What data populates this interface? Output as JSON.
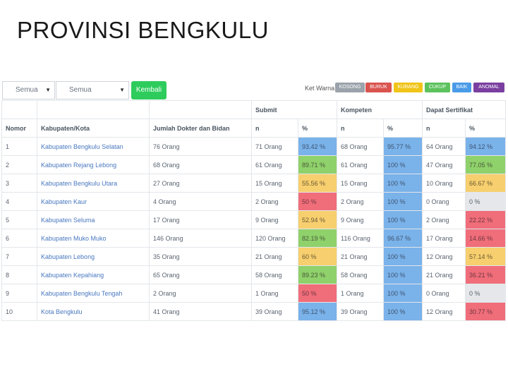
{
  "page_title": "PROVINSI BENGKULU",
  "filters": {
    "select1": "Semua",
    "select2": "Semua",
    "back_label": "Kembali"
  },
  "legend": {
    "title": "Ket Warna :",
    "items": [
      {
        "label": "KOSONG",
        "color": "#9aa3ab"
      },
      {
        "label": "BURUK",
        "color": "#d9534f"
      },
      {
        "label": "KURANG",
        "color": "#f0c419"
      },
      {
        "label": "CUKUP",
        "color": "#5cc25c"
      },
      {
        "label": "BAIK",
        "color": "#4a9be8"
      },
      {
        "label": "ANOMAL",
        "color": "#7a3fa0"
      }
    ]
  },
  "table": {
    "group_headers": [
      "Submit",
      "Kompeten",
      "Dapat Sertifikat"
    ],
    "headers": [
      "Nomor",
      "Kabupaten/Kota",
      "Jumlah Dokter dan Bidan",
      "n",
      "%",
      "n",
      "%",
      "n",
      "%"
    ],
    "rows": [
      {
        "no": "1",
        "kab": "Kabupaten Bengkulu Selatan",
        "jumlah": "76 Orang",
        "s_n": "71 Orang",
        "s_p": "93.42 %",
        "s_c": "blue",
        "k_n": "68 Orang",
        "k_p": "95.77 %",
        "k_c": "blue",
        "d_n": "64 Orang",
        "d_p": "94.12 %",
        "d_c": "blue"
      },
      {
        "no": "2",
        "kab": "Kabupaten Rejang Lebong",
        "jumlah": "68 Orang",
        "s_n": "61 Orang",
        "s_p": "89.71 %",
        "s_c": "green",
        "k_n": "61 Orang",
        "k_p": "100 %",
        "k_c": "blue",
        "d_n": "47 Orang",
        "d_p": "77.05 %",
        "d_c": "green"
      },
      {
        "no": "3",
        "kab": "Kabupaten Bengkulu Utara",
        "jumlah": "27 Orang",
        "s_n": "15 Orang",
        "s_p": "55.56 %",
        "s_c": "yellow",
        "k_n": "15 Orang",
        "k_p": "100 %",
        "k_c": "blue",
        "d_n": "10 Orang",
        "d_p": "66.67 %",
        "d_c": "yellow"
      },
      {
        "no": "4",
        "kab": "Kabupaten Kaur",
        "jumlah": "4 Orang",
        "s_n": "2 Orang",
        "s_p": "50 %",
        "s_c": "red",
        "k_n": "2 Orang",
        "k_p": "100 %",
        "k_c": "blue",
        "d_n": "0 Orang",
        "d_p": "0 %",
        "d_c": "gray"
      },
      {
        "no": "5",
        "kab": "Kabupaten Seluma",
        "jumlah": "17 Orang",
        "s_n": "9 Orang",
        "s_p": "52.94 %",
        "s_c": "yellow",
        "k_n": "9 Orang",
        "k_p": "100 %",
        "k_c": "blue",
        "d_n": "2 Orang",
        "d_p": "22.22 %",
        "d_c": "red"
      },
      {
        "no": "6",
        "kab": "Kabupaten Muko Muko",
        "jumlah": "146 Orang",
        "s_n": "120 Orang",
        "s_p": "82.19 %",
        "s_c": "green",
        "k_n": "116 Orang",
        "k_p": "96.67 %",
        "k_c": "blue",
        "d_n": "17 Orang",
        "d_p": "14.66 %",
        "d_c": "red"
      },
      {
        "no": "7",
        "kab": "Kabupaten Lebong",
        "jumlah": "35 Orang",
        "s_n": "21 Orang",
        "s_p": "60 %",
        "s_c": "yellow",
        "k_n": "21 Orang",
        "k_p": "100 %",
        "k_c": "blue",
        "d_n": "12 Orang",
        "d_p": "57.14 %",
        "d_c": "yellow"
      },
      {
        "no": "8",
        "kab": "Kabupaten Kepahiang",
        "jumlah": "65 Orang",
        "s_n": "58 Orang",
        "s_p": "89.23 %",
        "s_c": "green",
        "k_n": "58 Orang",
        "k_p": "100 %",
        "k_c": "blue",
        "d_n": "21 Orang",
        "d_p": "36.21 %",
        "d_c": "red"
      },
      {
        "no": "9",
        "kab": "Kabupaten Bengkulu Tengah",
        "jumlah": "2 Orang",
        "s_n": "1 Orang",
        "s_p": "50 %",
        "s_c": "red",
        "k_n": "1 Orang",
        "k_p": "100 %",
        "k_c": "blue",
        "d_n": "0 Orang",
        "d_p": "0 %",
        "d_c": "gray"
      },
      {
        "no": "10",
        "kab": "Kota Bengkulu",
        "jumlah": "41 Orang",
        "s_n": "39 Orang",
        "s_p": "95.12 %",
        "s_c": "blue",
        "k_n": "39 Orang",
        "k_p": "100 %",
        "k_c": "blue",
        "d_n": "12 Orang",
        "d_p": "30.77 %",
        "d_c": "red"
      }
    ]
  }
}
